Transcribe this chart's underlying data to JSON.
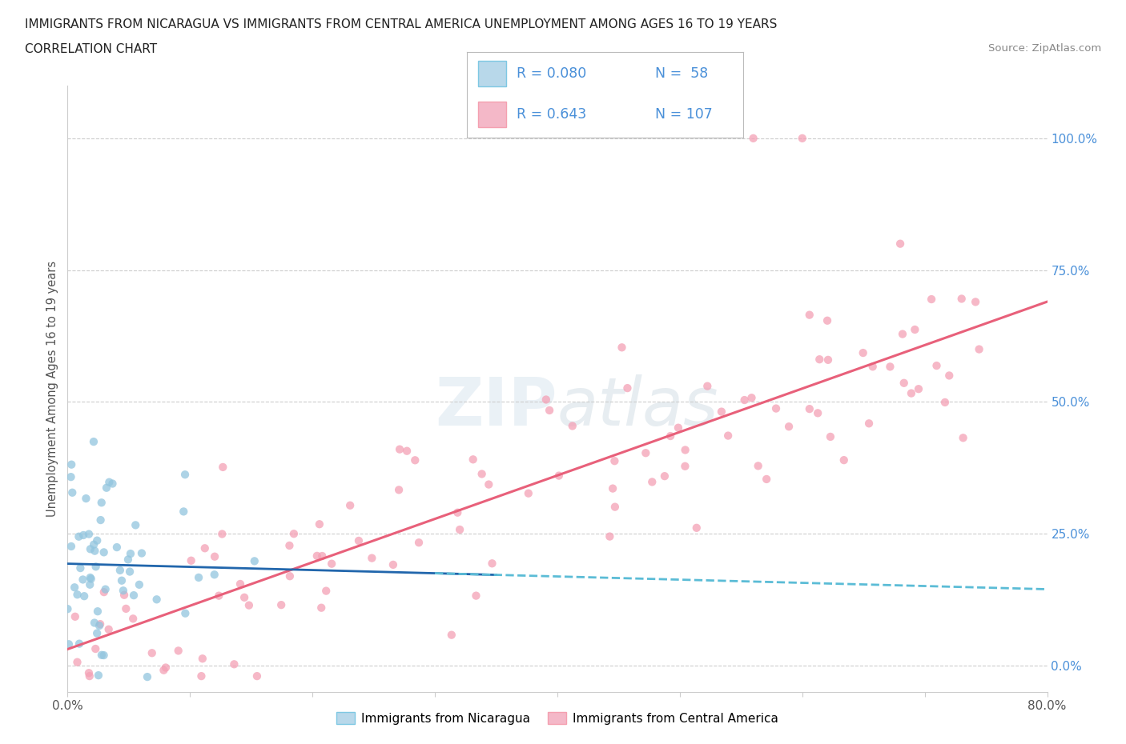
{
  "title_line1": "IMMIGRANTS FROM NICARAGUA VS IMMIGRANTS FROM CENTRAL AMERICA UNEMPLOYMENT AMONG AGES 16 TO 19 YEARS",
  "title_line2": "CORRELATION CHART",
  "source_text": "Source: ZipAtlas.com",
  "ylabel": "Unemployment Among Ages 16 to 19 years",
  "xmin": 0.0,
  "xmax": 0.8,
  "ymin": -0.05,
  "ymax": 1.1,
  "right_ytick_vals": [
    0.0,
    0.25,
    0.5,
    0.75,
    1.0
  ],
  "right_yticklabels": [
    "0.0%",
    "25.0%",
    "50.0%",
    "75.0%",
    "100.0%"
  ],
  "xticks": [
    0.0,
    0.1,
    0.2,
    0.3,
    0.4,
    0.5,
    0.6,
    0.7,
    0.8
  ],
  "xticklabels": [
    "0.0%",
    "",
    "",
    "",
    "",
    "",
    "",
    "",
    "80.0%"
  ],
  "watermark_text": "ZIPatlas",
  "legend_r1": "R = 0.080",
  "legend_n1": "N =  58",
  "legend_r2": "R = 0.643",
  "legend_n2": "N = 107",
  "color_nicaragua": "#92c5de",
  "color_central": "#f4a0b5",
  "color_nicaragua_trend": "#4393c3",
  "color_central_trend": "#e8607a",
  "color_legend_text": "#4a90d9",
  "background_color": "#ffffff",
  "scatter_alpha": 0.75,
  "scatter_size": 55,
  "grid_color": "#cccccc",
  "tick_label_color": "#555555",
  "ylabel_color": "#555555",
  "source_color": "#888888"
}
